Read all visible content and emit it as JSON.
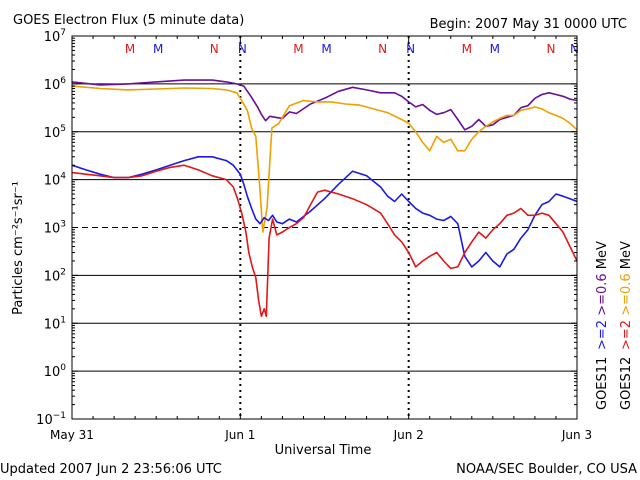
{
  "header": {
    "title": "GOES Electron Flux (5 minute data)",
    "begin": "Begin: 2007 May 31 0000 UTC"
  },
  "footer": {
    "updated": "Updated 2007 Jun  2 23:56:06 UTC",
    "credit": "NOAA/SEC Boulder, CO USA"
  },
  "colors": {
    "goes11_ge2": "#1a1ae6",
    "goes12_ge2": "#e01818",
    "goes11_ge06": "#6a0d99",
    "goes12_ge06": "#f0a000",
    "m_label": "#e01818",
    "n_label": "#1a1ae6"
  },
  "chart_data": {
    "type": "line",
    "title": "GOES Electron Flux (5 minute data)",
    "xlabel": "Universal Time",
    "ylabel": "Particles cm⁻²s⁻¹sr⁻¹",
    "yscale": "log",
    "ylim": [
      0.1,
      10000000
    ],
    "xlim": [
      0,
      72
    ],
    "x_unit": "hours since 2007 May 31 00:00 UTC",
    "x_ticks": [
      {
        "x": 0,
        "label": "May 31"
      },
      {
        "x": 24,
        "label": "Jun 1"
      },
      {
        "x": 48,
        "label": "Jun 2"
      },
      {
        "x": 72,
        "label": "Jun 3"
      }
    ],
    "y_ticks": [
      {
        "value": 10000000,
        "base": "10",
        "exp": "7"
      },
      {
        "value": 1000000,
        "base": "10",
        "exp": "6"
      },
      {
        "value": 100000,
        "base": "10",
        "exp": "5"
      },
      {
        "value": 10000,
        "base": "10",
        "exp": "4"
      },
      {
        "value": 1000,
        "base": "10",
        "exp": "3"
      },
      {
        "value": 100,
        "base": "10",
        "exp": "2"
      },
      {
        "value": 10,
        "base": "10",
        "exp": "1"
      },
      {
        "value": 1,
        "base": "10",
        "exp": "0"
      },
      {
        "value": 0.1,
        "base": "10",
        "exp": "−1"
      }
    ],
    "gridlines": [
      1000000,
      100000,
      10000,
      100,
      10,
      1
    ],
    "dashed_gridline": 1000,
    "noon_markers": [
      {
        "label": "M",
        "color": "#e01818",
        "x": 8
      },
      {
        "label": "M",
        "color": "#1a1ae6",
        "x": 12
      },
      {
        "label": "N",
        "color": "#e01818",
        "x": 20
      },
      {
        "label": "N",
        "color": "#1a1ae6",
        "x": 24
      },
      {
        "label": "M",
        "color": "#e01818",
        "x": 32
      },
      {
        "label": "M",
        "color": "#1a1ae6",
        "x": 36
      },
      {
        "label": "N",
        "color": "#e01818",
        "x": 44
      },
      {
        "label": "N",
        "color": "#1a1ae6",
        "x": 48
      },
      {
        "label": "M",
        "color": "#e01818",
        "x": 56
      },
      {
        "label": "M",
        "color": "#1a1ae6",
        "x": 60
      },
      {
        "label": "N",
        "color": "#e01818",
        "x": 68
      },
      {
        "label": "N",
        "color": "#1a1ae6",
        "x": 72
      }
    ],
    "legend": {
      "placement": "right",
      "items": [
        {
          "text": "GOES11",
          "parts": [
            {
              "text": ">=2",
              "color": "#1a1ae6"
            },
            {
              "text": ">=0.6",
              "color": "#6a0d99"
            },
            {
              "text": "MeV",
              "color": "#000000"
            }
          ]
        },
        {
          "text": "GOES12",
          "parts": [
            {
              "text": ">=2",
              "color": "#e01818"
            },
            {
              "text": ">=0.6",
              "color": "#f0a000"
            },
            {
              "text": "MeV",
              "color": "#000000"
            }
          ]
        }
      ]
    },
    "series": [
      {
        "name": "GOES11 >=0.6 MeV",
        "color": "#6a0d99",
        "x": [
          0,
          4,
          8,
          12,
          16,
          20,
          22,
          23.5,
          24.5,
          25.5,
          26.5,
          27,
          27.6,
          28.2,
          29,
          30,
          31,
          32,
          34,
          36,
          38,
          40,
          42,
          44,
          46,
          47,
          48,
          49,
          50,
          51,
          52,
          53,
          54,
          55,
          56,
          57,
          58,
          59,
          60,
          61,
          62,
          63,
          64,
          65,
          66,
          67,
          68,
          69,
          70,
          71,
          72
        ],
        "y": [
          1100000,
          950000,
          1000000,
          1100000,
          1200000,
          1200000,
          1100000,
          1000000,
          900000,
          550000,
          320000,
          230000,
          170000,
          210000,
          200000,
          190000,
          260000,
          240000,
          380000,
          500000,
          700000,
          850000,
          750000,
          650000,
          650000,
          550000,
          420000,
          330000,
          370000,
          280000,
          230000,
          250000,
          290000,
          180000,
          110000,
          130000,
          180000,
          130000,
          140000,
          180000,
          200000,
          220000,
          320000,
          350000,
          500000,
          600000,
          650000,
          600000,
          550000,
          480000,
          450000
        ]
      },
      {
        "name": "GOES12 >=0.6 MeV",
        "color": "#f0a000",
        "x": [
          0,
          4,
          8,
          12,
          16,
          20,
          22,
          23.5,
          24.2,
          25,
          25.6,
          26.2,
          26.8,
          27.2,
          27.8,
          28.5,
          29.5,
          31,
          33,
          35,
          37,
          39,
          41,
          43,
          45,
          47,
          48,
          49,
          50,
          51,
          52,
          53,
          54,
          55,
          56,
          57,
          58,
          59,
          60,
          61,
          62,
          63,
          64,
          65,
          66,
          67,
          68,
          69,
          70,
          71,
          72
        ],
        "y": [
          900000,
          800000,
          750000,
          780000,
          820000,
          800000,
          750000,
          650000,
          450000,
          280000,
          120000,
          80000,
          6000,
          800,
          2500,
          120000,
          150000,
          350000,
          450000,
          420000,
          420000,
          380000,
          360000,
          300000,
          250000,
          180000,
          150000,
          100000,
          60000,
          40000,
          80000,
          60000,
          70000,
          40000,
          40000,
          70000,
          100000,
          130000,
          160000,
          190000,
          220000,
          220000,
          280000,
          300000,
          330000,
          300000,
          250000,
          220000,
          190000,
          150000,
          110000
        ]
      },
      {
        "name": "GOES11 >=2 MeV",
        "color": "#1a1ae6",
        "x": [
          0,
          2,
          4,
          6,
          8,
          10,
          12,
          14,
          16,
          18,
          20,
          22,
          23,
          24,
          24.5,
          25,
          25.6,
          26.2,
          26.8,
          27.4,
          28,
          28.6,
          29.2,
          30,
          31,
          32,
          34,
          36,
          38,
          40,
          42,
          44,
          45,
          46,
          47,
          48,
          49,
          50,
          51,
          52,
          53,
          54,
          55,
          56,
          57,
          58,
          59,
          60,
          61,
          62,
          63,
          64,
          65,
          66,
          67,
          68,
          69,
          70,
          71,
          72
        ],
        "y": [
          20000,
          16000,
          13000,
          11000,
          11000,
          13000,
          16000,
          20000,
          25000,
          30000,
          30000,
          25000,
          20000,
          13000,
          8000,
          4500,
          2500,
          1500,
          1200,
          1600,
          1400,
          1800,
          1300,
          1200,
          1500,
          1300,
          2200,
          4000,
          8000,
          15000,
          12000,
          7000,
          4500,
          3500,
          5000,
          3500,
          2500,
          2000,
          1800,
          1500,
          1400,
          1700,
          1200,
          250,
          150,
          200,
          300,
          200,
          150,
          280,
          350,
          600,
          900,
          1800,
          3000,
          3500,
          5000,
          4500,
          4000,
          3500
        ]
      },
      {
        "name": "GOES12 >=2 MeV",
        "color": "#e01818",
        "x": [
          0,
          2,
          4,
          6,
          8,
          10,
          12,
          14,
          16,
          18,
          20,
          22,
          23,
          23.6,
          24.2,
          24.8,
          25.2,
          25.7,
          26.2,
          26.6,
          27,
          27.4,
          27.7,
          28.1,
          28.6,
          29.2,
          30,
          31,
          32,
          33,
          34,
          35,
          36,
          38,
          40,
          42,
          44,
          45,
          46,
          47,
          48,
          49,
          50,
          51,
          52,
          53,
          54,
          55,
          56,
          57,
          58,
          59,
          60,
          61,
          62,
          63,
          64,
          65,
          66,
          67,
          68,
          69,
          70,
          71,
          72
        ],
        "y": [
          14000,
          13000,
          12000,
          11000,
          11000,
          12000,
          15000,
          18000,
          20000,
          16000,
          12000,
          10000,
          7000,
          4000,
          2000,
          800,
          300,
          150,
          90,
          30,
          14,
          20,
          14,
          600,
          1500,
          700,
          800,
          1000,
          1200,
          1600,
          3000,
          5500,
          6000,
          5000,
          4000,
          3000,
          2000,
          1200,
          700,
          500,
          300,
          150,
          200,
          250,
          300,
          200,
          140,
          150,
          300,
          500,
          800,
          600,
          900,
          1200,
          1800,
          2000,
          2500,
          1800,
          1800,
          2000,
          1800,
          1200,
          800,
          400,
          200
        ]
      }
    ]
  }
}
